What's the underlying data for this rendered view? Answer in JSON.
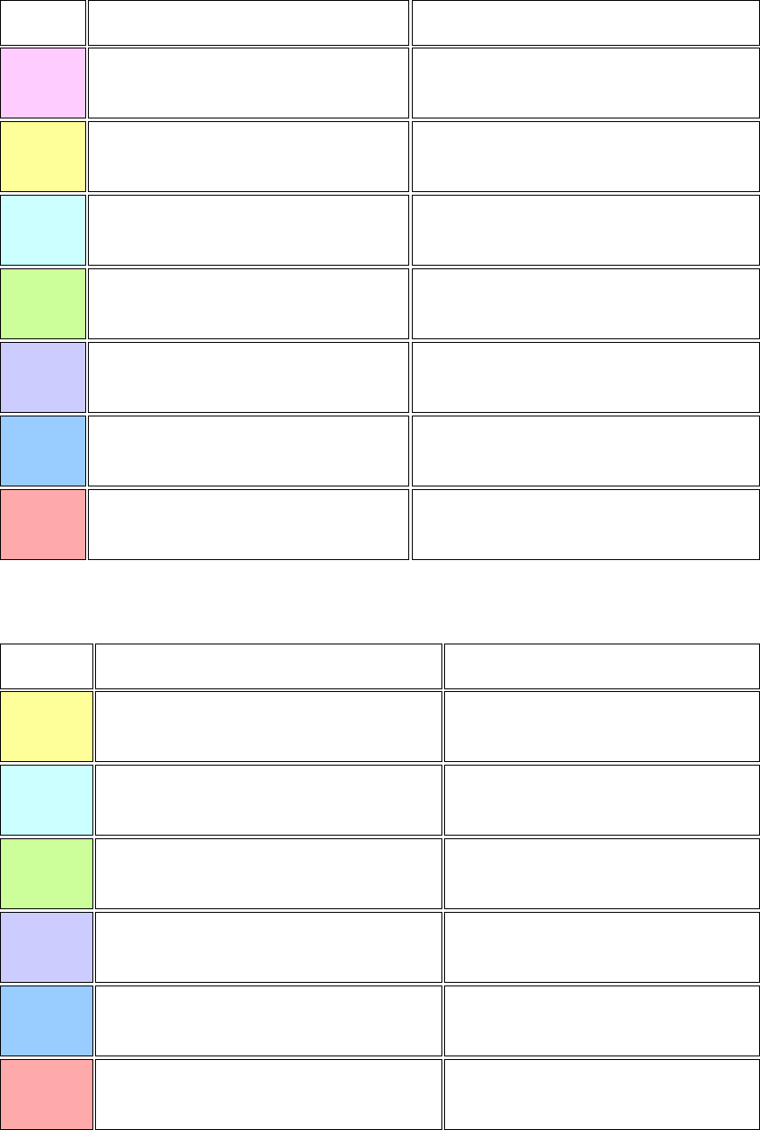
{
  "tables": [
    {
      "header": [
        "",
        "",
        ""
      ],
      "row_colors": [
        "#ffccff",
        "#ffff99",
        "#ccffff",
        "#ccff99",
        "#ccccff",
        "#99ccff",
        "#ffaaaa"
      ]
    },
    {
      "header": [
        "",
        "",
        ""
      ],
      "row_colors": [
        "#ffff99",
        "#ccffff",
        "#ccff99",
        "#ccccff",
        "#99ccff",
        "#ffaaaa"
      ]
    }
  ]
}
